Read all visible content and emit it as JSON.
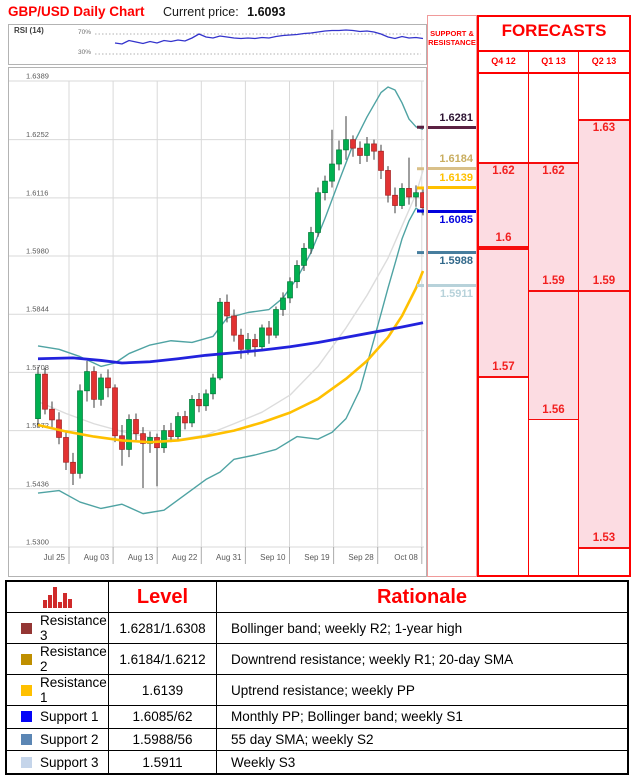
{
  "header": {
    "title": "GBP/USD Daily Chart",
    "price_label": "Current price:",
    "price": "1.6093"
  },
  "rsi_panel": {
    "label": "RSI (14)",
    "upper_guide": "70%",
    "lower_guide": "30%"
  },
  "sr_panel": {
    "title_line1": "SUPPORT &",
    "title_line2": "RESISTANCE",
    "levels": [
      {
        "value": "1.6281",
        "price": 1.6281,
        "text_color": "#2e1433",
        "line_color": "#5b2142",
        "label_side": "above"
      },
      {
        "value": "1.6184",
        "price": 1.6184,
        "text_color": "#c9ad5f",
        "line_color": "#d9c089",
        "label_side": "above"
      },
      {
        "value": "1.6139",
        "price": 1.6139,
        "text_color": "#ffc000",
        "line_color": "#ffc000",
        "label_side": "above"
      },
      {
        "value": "1.6085",
        "price": 1.6085,
        "text_color": "#0202dd",
        "line_color": "#0202dd",
        "label_side": "below"
      },
      {
        "value": "1.5988",
        "price": 1.5988,
        "text_color": "#31688a",
        "line_color": "#477e9e",
        "label_side": "below"
      },
      {
        "value": "1.5911",
        "price": 1.5911,
        "text_color": "#b7d2da",
        "line_color": "#b7d2da",
        "label_side": "below"
      }
    ]
  },
  "forecasts": {
    "title": "FORECASTS",
    "columns": [
      {
        "quarter": "Q4 12",
        "high": 1.62,
        "high_label": "1.62",
        "mid": 1.6,
        "mid_label": "1.6",
        "low": 1.57,
        "low_label": "1.57",
        "mid_thick": true
      },
      {
        "quarter": "Q1 13",
        "high": 1.62,
        "high_label": "1.62",
        "mid": 1.59,
        "mid_label": "1.59",
        "low": 1.56,
        "low_label": "1.56",
        "mid_thick": false
      },
      {
        "quarter": "Q2 13",
        "high": 1.63,
        "high_label": "1.63",
        "mid": 1.59,
        "mid_label": "1.59",
        "low": 1.53,
        "low_label": "1.53",
        "mid_thick": false
      }
    ]
  },
  "table": {
    "headers": {
      "level": "Level",
      "rationale": "Rationale"
    },
    "icon": "volume-bars-icon",
    "icon_bar_heights": [
      8,
      13,
      21,
      6,
      15,
      9
    ],
    "rows": [
      {
        "swatch": "#943634",
        "label": "Resistance 3",
        "level": "1.6281/1.6308",
        "rationale": "Bollinger band; weekly R2; 1-year high"
      },
      {
        "swatch": "#bf8f00",
        "label": "Resistance 2",
        "level": "1.6184/1.6212",
        "rationale": "Downtrend resistance; weekly R1; 20-day SMA"
      },
      {
        "swatch": "#ffc000",
        "label": "Resistance 1",
        "level": "1.6139",
        "rationale": "Uptrend resistance; weekly PP"
      },
      {
        "swatch": "#0404f8",
        "label": "Support 1",
        "level": "1.6085/62",
        "rationale": "Monthly PP; Bollinger band; weekly S1"
      },
      {
        "swatch": "#5b86b4",
        "label": "Support 2",
        "level": "1.5988/56",
        "rationale": "55 day SMA; weekly S2"
      },
      {
        "swatch": "#c5d5ea",
        "label": "Support 3",
        "level": "1.5911",
        "rationale": "Weekly S3"
      }
    ]
  },
  "chart_data": [
    {
      "type": "line",
      "name": "RSI (14)",
      "ylim": [
        0,
        100
      ],
      "guides": [
        70,
        30
      ],
      "start_index": 11,
      "values": [
        52,
        50,
        57,
        54,
        51,
        55,
        52,
        57,
        55,
        58,
        56,
        62,
        70,
        64,
        62,
        66,
        64,
        62,
        61,
        62,
        61,
        63,
        62,
        65,
        67,
        68,
        69,
        71,
        72,
        74,
        76,
        77,
        77,
        78,
        77,
        75,
        76,
        74,
        70,
        64,
        61,
        65,
        62,
        63,
        61
      ],
      "line_color": "#3333cc"
    },
    {
      "type": "candlestick",
      "title": "GBP/USD Daily Chart",
      "ylim": [
        1.53,
        1.6389
      ],
      "yticks": [
        "1.6389",
        "1.6252",
        "1.6116",
        "1.5980",
        "1.5844",
        "1.5708",
        "1.5572",
        "1.5436",
        "1.5300"
      ],
      "xticklabels": [
        "Jul 25",
        "Aug 03",
        "Aug 13",
        "Aug 22",
        "Aug 31",
        "Sep 10",
        "Sep 19",
        "Sep 28",
        "Oct 08"
      ],
      "up_color": "#00b050",
      "down_color": "#e23232",
      "candles": [
        [
          1.56,
          1.5721,
          1.558,
          1.5704
        ],
        [
          1.5704,
          1.5718,
          1.561,
          1.5622
        ],
        [
          1.5622,
          1.564,
          1.5575,
          1.5597
        ],
        [
          1.5597,
          1.5615,
          1.554,
          1.5556
        ],
        [
          1.5556,
          1.557,
          1.548,
          1.5498
        ],
        [
          1.5498,
          1.552,
          1.5445,
          1.5472
        ],
        [
          1.5472,
          1.568,
          1.546,
          1.5665
        ],
        [
          1.5665,
          1.5735,
          1.564,
          1.571
        ],
        [
          1.571,
          1.5722,
          1.5625,
          1.5645
        ],
        [
          1.5645,
          1.5705,
          1.563,
          1.5695
        ],
        [
          1.5695,
          1.5715,
          1.565,
          1.5672
        ],
        [
          1.5672,
          1.568,
          1.5545,
          1.556
        ],
        [
          1.556,
          1.5585,
          1.549,
          1.5528
        ],
        [
          1.5528,
          1.561,
          1.551,
          1.5598
        ],
        [
          1.5598,
          1.5612,
          1.555,
          1.5565
        ],
        [
          1.5565,
          1.558,
          1.5438,
          1.5542
        ],
        [
          1.5542,
          1.557,
          1.552,
          1.5556
        ],
        [
          1.5556,
          1.5565,
          1.5442,
          1.5532
        ],
        [
          1.5532,
          1.5585,
          1.552,
          1.5572
        ],
        [
          1.5572,
          1.559,
          1.5545,
          1.5558
        ],
        [
          1.5558,
          1.5615,
          1.555,
          1.5605
        ],
        [
          1.5605,
          1.5618,
          1.5575,
          1.559
        ],
        [
          1.559,
          1.5655,
          1.558,
          1.5645
        ],
        [
          1.5645,
          1.566,
          1.5615,
          1.563
        ],
        [
          1.563,
          1.5668,
          1.5618,
          1.5658
        ],
        [
          1.5658,
          1.5705,
          1.5645,
          1.5695
        ],
        [
          1.5695,
          1.5882,
          1.569,
          1.5872
        ],
        [
          1.5872,
          1.589,
          1.5825,
          1.584
        ],
        [
          1.584,
          1.5855,
          1.578,
          1.5795
        ],
        [
          1.5795,
          1.581,
          1.574,
          1.5762
        ],
        [
          1.5762,
          1.58,
          1.575,
          1.5785
        ],
        [
          1.5785,
          1.5798,
          1.5745,
          1.5768
        ],
        [
          1.5768,
          1.582,
          1.576,
          1.5812
        ],
        [
          1.5812,
          1.5828,
          1.5775,
          1.5795
        ],
        [
          1.5795,
          1.5862,
          1.5788,
          1.5855
        ],
        [
          1.5855,
          1.5895,
          1.584,
          1.5882
        ],
        [
          1.5882,
          1.593,
          1.587,
          1.592
        ],
        [
          1.592,
          1.597,
          1.5905,
          1.5958
        ],
        [
          1.5958,
          1.601,
          1.5945,
          1.5998
        ],
        [
          1.5998,
          1.6048,
          1.5985,
          1.6035
        ],
        [
          1.6035,
          1.614,
          1.6025,
          1.6128
        ],
        [
          1.6128,
          1.6168,
          1.611,
          1.6155
        ],
        [
          1.6155,
          1.6275,
          1.614,
          1.6195
        ],
        [
          1.6195,
          1.625,
          1.618,
          1.6228
        ],
        [
          1.6228,
          1.6307,
          1.6205,
          1.6252
        ],
        [
          1.6252,
          1.6262,
          1.6212,
          1.6232
        ],
        [
          1.6232,
          1.6248,
          1.6195,
          1.6215
        ],
        [
          1.6215,
          1.6258,
          1.62,
          1.6242
        ],
        [
          1.6242,
          1.6252,
          1.6205,
          1.6225
        ],
        [
          1.6225,
          1.624,
          1.616,
          1.618
        ],
        [
          1.618,
          1.619,
          1.6105,
          1.6122
        ],
        [
          1.6122,
          1.614,
          1.608,
          1.6098
        ],
        [
          1.6098,
          1.615,
          1.609,
          1.6138
        ],
        [
          1.6138,
          1.621,
          1.61,
          1.6118
        ],
        [
          1.6118,
          1.6145,
          1.6095,
          1.6128
        ],
        [
          1.6128,
          1.614,
          1.6075,
          1.6093
        ]
      ],
      "overlays": [
        {
          "name": "sma-20",
          "color": "#dcdcdc",
          "width": 1.4,
          "points": [
            [
              0,
              1.564
            ],
            [
              4,
              1.5612
            ],
            [
              8,
              1.5588
            ],
            [
              12,
              1.557
            ],
            [
              16,
              1.5556
            ],
            [
              20,
              1.5551
            ],
            [
              24,
              1.5562
            ],
            [
              28,
              1.5588
            ],
            [
              32,
              1.5615
            ],
            [
              36,
              1.5655
            ],
            [
              40,
              1.5722
            ],
            [
              44,
              1.5812
            ],
            [
              47,
              1.5888
            ],
            [
              50,
              1.5975
            ],
            [
              52,
              1.605
            ],
            [
              54,
              1.6125
            ],
            [
              55,
              1.618
            ]
          ]
        },
        {
          "name": "bollinger-upper",
          "color": "#4fa3a3",
          "width": 1.4,
          "points": [
            [
              0,
              1.577
            ],
            [
              3,
              1.5762
            ],
            [
              6,
              1.5745
            ],
            [
              9,
              1.5722
            ],
            [
              11,
              1.573
            ],
            [
              13,
              1.5752
            ],
            [
              16,
              1.5772
            ],
            [
              19,
              1.5782
            ],
            [
              22,
              1.5778
            ],
            [
              25,
              1.5792
            ],
            [
              27,
              1.5835
            ],
            [
              30,
              1.5848
            ],
            [
              33,
              1.5855
            ],
            [
              35,
              1.5882
            ],
            [
              37,
              1.5928
            ],
            [
              39,
              1.5988
            ],
            [
              41,
              1.6068
            ],
            [
              43,
              1.6155
            ],
            [
              45,
              1.624
            ],
            [
              47,
              1.6305
            ],
            [
              49,
              1.6362
            ],
            [
              50,
              1.6375
            ],
            [
              51,
              1.6368
            ],
            [
              52,
              1.6338
            ],
            [
              53,
              1.63
            ],
            [
              54,
              1.6282
            ],
            [
              55,
              1.6276
            ]
          ]
        },
        {
          "name": "bollinger-lower",
          "color": "#4fa3a3",
          "width": 1.4,
          "points": [
            [
              0,
              1.5426
            ],
            [
              3,
              1.5432
            ],
            [
              6,
              1.5405
            ],
            [
              9,
              1.539
            ],
            [
              12,
              1.54
            ],
            [
              15,
              1.5378
            ],
            [
              18,
              1.5386
            ],
            [
              21,
              1.5422
            ],
            [
              24,
              1.5458
            ],
            [
              26,
              1.5475
            ],
            [
              28,
              1.5505
            ],
            [
              31,
              1.5515
            ],
            [
              34,
              1.5528
            ],
            [
              37,
              1.5558
            ],
            [
              40,
              1.5552
            ],
            [
              42,
              1.5568
            ],
            [
              44,
              1.56
            ],
            [
              46,
              1.5668
            ],
            [
              48,
              1.5785
            ],
            [
              50,
              1.5905
            ],
            [
              51,
              1.5962
            ],
            [
              52,
              1.602
            ],
            [
              53,
              1.6062
            ],
            [
              54,
              1.6092
            ],
            [
              55,
              1.608
            ]
          ]
        },
        {
          "name": "sma-55",
          "color": "#ffc000",
          "width": 2.6,
          "front": true,
          "points": [
            [
              0,
              1.5585
            ],
            [
              4,
              1.557
            ],
            [
              8,
              1.5558
            ],
            [
              12,
              1.5549
            ],
            [
              16,
              1.5545
            ],
            [
              20,
              1.5549
            ],
            [
              24,
              1.5559
            ],
            [
              28,
              1.5572
            ],
            [
              32,
              1.5591
            ],
            [
              36,
              1.5614
            ],
            [
              40,
              1.5646
            ],
            [
              44,
              1.5693
            ],
            [
              47,
              1.5735
            ],
            [
              50,
              1.579
            ],
            [
              52,
              1.584
            ],
            [
              54,
              1.5905
            ],
            [
              55,
              1.5945
            ]
          ]
        },
        {
          "name": "sma-long",
          "color": "#2222dd",
          "width": 2.8,
          "front": true,
          "points": [
            [
              0,
              1.574
            ],
            [
              5,
              1.5742
            ],
            [
              9,
              1.5736
            ],
            [
              12,
              1.573
            ],
            [
              16,
              1.5733
            ],
            [
              20,
              1.574
            ],
            [
              24,
              1.5748
            ],
            [
              28,
              1.5754
            ],
            [
              32,
              1.576
            ],
            [
              36,
              1.5768
            ],
            [
              40,
              1.5778
            ],
            [
              44,
              1.579
            ],
            [
              48,
              1.5802
            ],
            [
              52,
              1.5814
            ],
            [
              55,
              1.5824
            ]
          ]
        }
      ]
    }
  ]
}
